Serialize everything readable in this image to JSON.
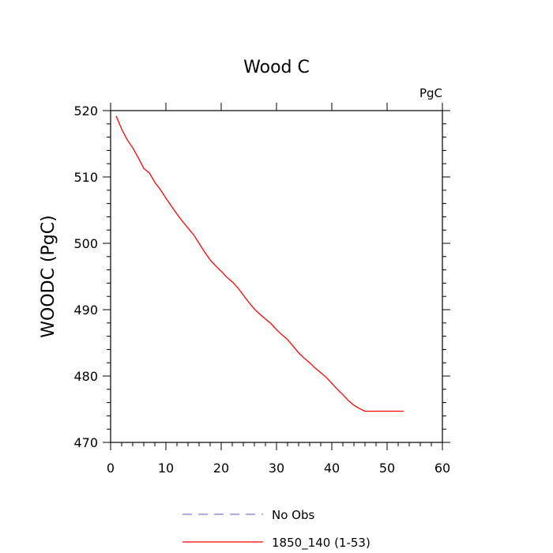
{
  "chart_data": {
    "type": "line",
    "title": "Wood C",
    "units_label": "PgC",
    "ylabel": "WOODC  (PgC)",
    "xlabel": "",
    "xlim": [
      0,
      60
    ],
    "ylim": [
      470,
      520
    ],
    "x_ticks": [
      0,
      10,
      20,
      30,
      40,
      50,
      60
    ],
    "y_ticks": [
      470,
      480,
      490,
      500,
      510,
      520
    ],
    "x_tick_labels": [
      "0",
      "10",
      "20",
      "30",
      "40",
      "50",
      "60"
    ],
    "y_tick_labels": [
      "470",
      "480",
      "490",
      "500",
      "510",
      "520"
    ],
    "grid": false,
    "legend_position": "bottom",
    "series": [
      {
        "name": "No Obs",
        "color": "#7b7bd6",
        "style": "dashed",
        "x": [],
        "y": []
      },
      {
        "name": "1850_140 (1-53)",
        "color": "#ff0000",
        "style": "solid",
        "x": [
          1,
          2,
          3,
          4,
          5,
          6,
          7,
          8,
          9,
          10,
          11,
          12,
          13,
          14,
          15,
          16,
          17,
          18,
          19,
          20,
          21,
          22,
          23,
          24,
          25,
          26,
          27,
          28,
          29,
          30,
          31,
          32,
          33,
          34,
          35,
          36,
          37,
          38,
          39,
          40,
          41,
          42,
          43,
          44,
          45,
          46,
          47,
          48,
          49,
          50,
          51,
          52,
          53
        ],
        "y": [
          519.2,
          517.2,
          515.6,
          514.4,
          512.9,
          511.3,
          510.6,
          509.2,
          508.1,
          506.8,
          505.6,
          504.4,
          503.3,
          502.3,
          501.3,
          500.0,
          498.7,
          497.5,
          496.6,
          495.8,
          494.9,
          494.2,
          493.3,
          492.2,
          491.1,
          490.1,
          489.3,
          488.6,
          487.9,
          487.0,
          486.2,
          485.5,
          484.5,
          483.5,
          482.7,
          482.0,
          481.2,
          480.5,
          479.8,
          478.9,
          478.0,
          477.2,
          476.3,
          475.6,
          475.1,
          474.7,
          474.7,
          474.7,
          474.7,
          474.7,
          474.7,
          474.7,
          474.7
        ]
      }
    ]
  }
}
